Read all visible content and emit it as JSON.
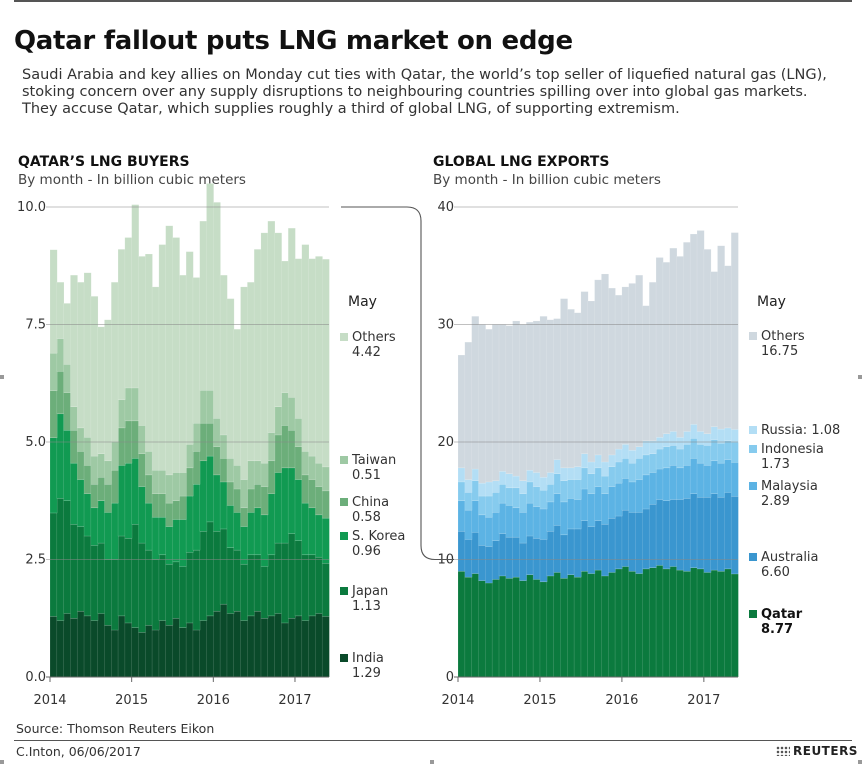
{
  "headline": "Qatar fallout puts LNG market on edge",
  "subhead": "Saudi Arabia and key allies on Monday cut ties with Qatar, the world’s top seller of liquefied natural gas (LNG), stoking concern over any supply disruptions to neighbouring countries spilling over into global gas markets. They accuse Qatar, which supplies roughly a third of global LNG, of supporting extremism.",
  "source": "Source: Thomson Reuters Eikon",
  "credit": "C.Inton,  06/06/2017",
  "brand": "REUTERS",
  "chart_data": [
    {
      "type": "area",
      "title": "QATAR’S LNG BUYERS",
      "subtitle": "By month - In billion cubic meters",
      "legend_header": "May",
      "ylim": [
        0,
        10
      ],
      "yticks": [
        "0.0",
        "2.5",
        "5.0",
        "7.5",
        "10.0"
      ],
      "xticks": [
        "2014",
        "2015",
        "2016",
        "2017"
      ],
      "x_start": "2014-01",
      "x_end": "2017-05",
      "grid": true,
      "series": [
        {
          "name": "India",
          "may_value": "1.29",
          "color": "#0a4a2a",
          "values": [
            1.29,
            1.2,
            1.35,
            1.25,
            1.4,
            1.3,
            1.2,
            1.35,
            1.1,
            1.0,
            1.3,
            1.15,
            1.05,
            0.95,
            1.1,
            1.0,
            1.2,
            1.1,
            1.25,
            1.05,
            1.15,
            1.0,
            1.2,
            1.3,
            1.4,
            1.55,
            1.35,
            1.4,
            1.2,
            1.3,
            1.4,
            1.25,
            1.3,
            1.35,
            1.15,
            1.25,
            1.3,
            1.2,
            1.3,
            1.35,
            1.29
          ]
        },
        {
          "name": "Japan",
          "may_value": "1.13",
          "color": "#0b7a3e",
          "values": [
            2.2,
            2.6,
            2.4,
            2.0,
            1.8,
            1.7,
            1.6,
            1.5,
            1.4,
            1.5,
            1.7,
            1.8,
            2.2,
            1.9,
            1.6,
            1.5,
            1.4,
            1.3,
            1.2,
            1.3,
            1.5,
            1.7,
            1.9,
            2.0,
            1.7,
            1.6,
            1.4,
            1.3,
            1.2,
            1.3,
            1.2,
            1.1,
            1.3,
            1.5,
            1.7,
            1.8,
            1.6,
            1.4,
            1.3,
            1.2,
            1.13
          ]
        },
        {
          "name": "S. Korea",
          "may_value": "0.96",
          "color": "#119a52",
          "values": [
            1.6,
            1.8,
            1.5,
            1.3,
            1.0,
            0.9,
            0.8,
            0.9,
            1.0,
            1.2,
            1.5,
            1.6,
            1.4,
            1.2,
            1.0,
            0.9,
            0.8,
            0.8,
            0.9,
            1.0,
            1.2,
            1.4,
            1.5,
            1.4,
            1.2,
            1.0,
            0.9,
            0.8,
            0.8,
            0.9,
            1.0,
            1.1,
            1.3,
            1.5,
            1.6,
            1.4,
            1.3,
            1.1,
            1.0,
            0.9,
            0.96
          ]
        },
        {
          "name": "China",
          "may_value": "0.58",
          "color": "#6cae7a",
          "values": [
            1.0,
            0.9,
            0.8,
            0.7,
            0.6,
            0.6,
            0.5,
            0.5,
            0.6,
            0.7,
            0.8,
            0.9,
            0.8,
            0.7,
            0.6,
            0.5,
            0.5,
            0.5,
            0.4,
            0.5,
            0.6,
            0.7,
            0.8,
            0.7,
            0.6,
            0.5,
            0.5,
            0.5,
            0.4,
            0.5,
            0.5,
            0.6,
            0.7,
            0.8,
            0.9,
            0.8,
            0.7,
            0.6,
            0.6,
            0.6,
            0.58
          ]
        },
        {
          "name": "Taiwan",
          "may_value": "0.51",
          "color": "#9ec9a4",
          "values": [
            0.8,
            0.7,
            0.6,
            0.5,
            0.5,
            0.6,
            0.6,
            0.5,
            0.5,
            0.6,
            0.6,
            0.7,
            0.7,
            0.6,
            0.5,
            0.5,
            0.5,
            0.6,
            0.6,
            0.5,
            0.5,
            0.6,
            0.7,
            0.7,
            0.6,
            0.5,
            0.5,
            0.5,
            0.6,
            0.6,
            0.5,
            0.5,
            0.6,
            0.6,
            0.7,
            0.7,
            0.6,
            0.5,
            0.5,
            0.5,
            0.51
          ]
        },
        {
          "name": "Others",
          "may_value": "4.42",
          "color": "#c6ddc6",
          "values": [
            2.2,
            1.2,
            1.3,
            2.8,
            3.1,
            3.5,
            3.4,
            2.7,
            3.0,
            3.4,
            3.2,
            3.2,
            3.9,
            3.6,
            4.2,
            3.9,
            4.8,
            5.3,
            5.0,
            4.2,
            4.1,
            3.1,
            3.6,
            4.4,
            4.6,
            3.4,
            3.4,
            2.9,
            4.1,
            3.8,
            4.5,
            4.9,
            4.5,
            3.7,
            2.8,
            3.6,
            3.4,
            4.4,
            4.2,
            4.4,
            4.42
          ]
        }
      ]
    },
    {
      "type": "area",
      "title": "GLOBAL LNG EXPORTS",
      "subtitle": "By month - In billion cubic meters",
      "legend_header": "May",
      "ylim": [
        0,
        40
      ],
      "yticks": [
        "0",
        "10",
        "20",
        "30",
        "40"
      ],
      "xticks": [
        "2014",
        "2015",
        "2016",
        "2017"
      ],
      "x_start": "2014-01",
      "x_end": "2017-05",
      "grid": true,
      "series": [
        {
          "name": "Qatar",
          "may_value": "8.77",
          "color": "#0b7a3e",
          "values": [
            9.0,
            8.5,
            8.8,
            8.2,
            8.0,
            8.3,
            8.6,
            8.4,
            8.5,
            8.2,
            8.7,
            8.3,
            8.1,
            8.6,
            8.9,
            8.4,
            8.7,
            8.5,
            9.0,
            8.8,
            9.1,
            8.6,
            8.9,
            9.2,
            9.4,
            9.0,
            8.8,
            9.2,
            9.3,
            9.5,
            9.2,
            9.4,
            9.1,
            9.0,
            9.3,
            9.2,
            8.9,
            9.1,
            9.0,
            9.2,
            8.77
          ]
        },
        {
          "name": "Australia",
          "may_value": "6.60",
          "color": "#3a96cf",
          "values": [
            3.4,
            3.2,
            3.5,
            3.0,
            3.1,
            3.3,
            3.6,
            3.5,
            3.4,
            3.2,
            3.3,
            3.5,
            3.6,
            3.8,
            4.0,
            3.7,
            3.9,
            4.1,
            4.3,
            4.0,
            4.2,
            4.4,
            4.6,
            4.5,
            4.8,
            5.0,
            5.2,
            5.1,
            5.4,
            5.6,
            5.8,
            5.7,
            6.0,
            6.2,
            6.3,
            6.1,
            6.4,
            6.5,
            6.3,
            6.5,
            6.6
          ]
        },
        {
          "name": "Malaysia",
          "may_value": "2.89",
          "color": "#5cb3e4",
          "values": [
            2.6,
            2.5,
            2.7,
            2.6,
            2.5,
            2.4,
            2.6,
            2.7,
            2.5,
            2.6,
            2.8,
            2.7,
            2.6,
            2.5,
            2.7,
            2.8,
            2.6,
            2.5,
            2.7,
            2.8,
            2.9,
            2.6,
            2.7,
            2.8,
            2.7,
            2.6,
            2.8,
            2.9,
            2.7,
            2.6,
            2.8,
            2.9,
            2.7,
            2.8,
            3.0,
            2.9,
            2.7,
            2.8,
            2.9,
            2.8,
            2.89
          ]
        },
        {
          "name": "Indonesia",
          "may_value": "1.73",
          "color": "#86cbee",
          "values": [
            1.6,
            1.5,
            1.7,
            1.6,
            1.8,
            1.7,
            1.6,
            1.5,
            1.7,
            1.6,
            1.8,
            1.7,
            1.6,
            1.5,
            1.7,
            1.8,
            1.6,
            1.7,
            1.8,
            1.7,
            1.6,
            1.5,
            1.7,
            1.8,
            1.7,
            1.6,
            1.8,
            1.7,
            1.6,
            1.7,
            1.8,
            1.7,
            1.6,
            1.8,
            1.7,
            1.6,
            1.7,
            1.8,
            1.7,
            1.6,
            1.73
          ]
        },
        {
          "name": "Russia: 1.08",
          "may_value": "",
          "color": "#b3def5",
          "values": [
            1.2,
            1.1,
            1.0,
            1.1,
            1.2,
            1.0,
            1.1,
            1.2,
            1.0,
            1.1,
            1.0,
            1.2,
            1.1,
            1.0,
            1.2,
            1.1,
            1.0,
            1.1,
            1.2,
            1.0,
            1.1,
            1.2,
            1.0,
            1.1,
            1.2,
            1.1,
            1.0,
            1.2,
            1.1,
            1.0,
            1.1,
            1.2,
            1.0,
            1.1,
            1.2,
            1.1,
            1.0,
            1.1,
            1.2,
            1.1,
            1.08
          ]
        },
        {
          "name": "Others",
          "may_value": "16.75",
          "color": "#cfd8df",
          "values": [
            9.6,
            11.7,
            13.0,
            13.5,
            13.0,
            13.3,
            12.5,
            12.6,
            13.2,
            13.3,
            12.6,
            12.9,
            13.7,
            13.0,
            12.0,
            14.4,
            13.5,
            13.1,
            13.8,
            13.7,
            14.9,
            16.0,
            14.2,
            13.1,
            13.4,
            14.2,
            14.6,
            11.5,
            13.5,
            15.3,
            14.6,
            15.6,
            15.4,
            16.1,
            16.2,
            17.1,
            15.7,
            13.2,
            15.6,
            13.8,
            16.75
          ]
        }
      ]
    }
  ]
}
